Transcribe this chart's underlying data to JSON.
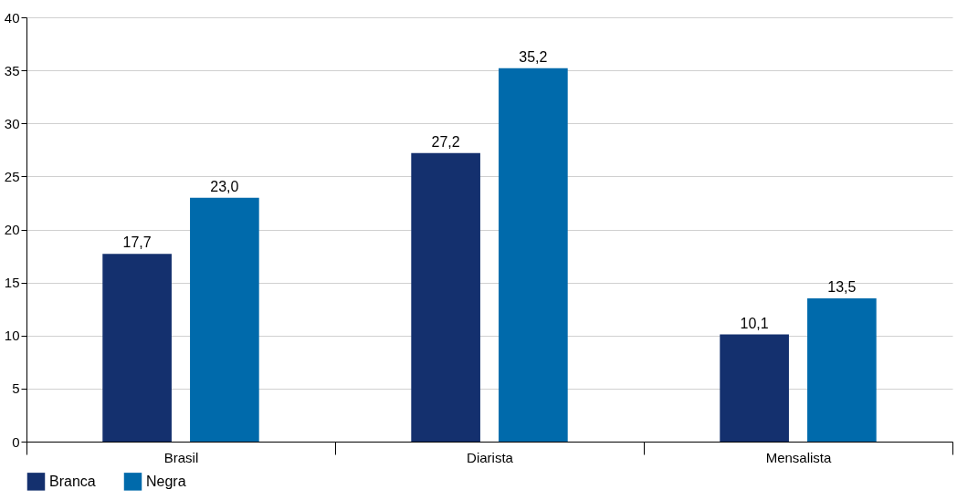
{
  "chart_data": {
    "type": "bar",
    "categories": [
      "Brasil",
      "Diarista",
      "Mensalista"
    ],
    "series": [
      {
        "name": "Branca",
        "color": "#14306e",
        "values": [
          17.7,
          27.2,
          10.1
        ],
        "value_labels": [
          "17,7",
          "27,2",
          "10,1"
        ]
      },
      {
        "name": "Negra",
        "color": "#006aab",
        "values": [
          23.0,
          35.2,
          13.5
        ],
        "value_labels": [
          "23,0",
          "35,2",
          "13,5"
        ]
      }
    ],
    "ylim": [
      0,
      40
    ],
    "yticks": [
      0,
      5,
      10,
      15,
      20,
      25,
      30,
      35,
      40
    ],
    "grid": "y",
    "legend": "bottom"
  }
}
